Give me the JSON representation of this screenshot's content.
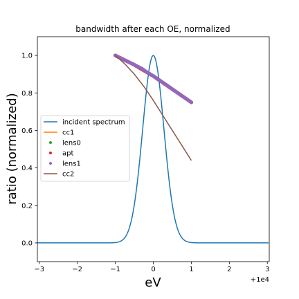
{
  "chart_data": {
    "type": "line",
    "title": "bandwidth after each OE, normalized",
    "xlabel": "eV",
    "ylabel": "ratio (normalized)",
    "x_offset_label": "+1e4",
    "xlim": [
      -3.05,
      3.05
    ],
    "ylim": [
      -0.1,
      1.1
    ],
    "x_ticks": [
      -3,
      -2,
      -1,
      0,
      1,
      2,
      3
    ],
    "x_tick_labels": [
      "−3",
      "−2",
      "−1",
      "0",
      "1",
      "2",
      "3"
    ],
    "y_ticks": [
      0.0,
      0.2,
      0.4,
      0.6,
      0.8,
      1.0
    ],
    "y_tick_labels": [
      "0.0",
      "0.2",
      "0.4",
      "0.6",
      "0.8",
      "1.0"
    ],
    "grid": false,
    "legend_position": "center-left",
    "series": [
      {
        "name": "incident spectrum",
        "kind": "line",
        "color": "#1f77b4",
        "x": [
          -3.0,
          -2.0,
          -1.5,
          -1.0,
          -0.8,
          -0.6,
          -0.5,
          -0.4,
          -0.3,
          -0.2,
          -0.1,
          0.0,
          0.1,
          0.2,
          0.3,
          0.4,
          0.5,
          0.6,
          0.8,
          1.0,
          1.5,
          2.0,
          3.0
        ],
        "y": [
          0.0,
          0.0,
          0.001,
          0.02,
          0.08,
          0.24,
          0.37,
          0.53,
          0.7,
          0.85,
          0.96,
          1.0,
          0.96,
          0.85,
          0.7,
          0.53,
          0.37,
          0.24,
          0.08,
          0.02,
          0.001,
          0.0,
          0.0
        ]
      },
      {
        "name": "cc1",
        "kind": "line",
        "color": "#ff7f0e",
        "x": [
          -1.0,
          -0.5,
          0.0,
          0.5,
          1.0
        ],
        "y": [
          1.0,
          0.95,
          0.89,
          0.82,
          0.75
        ]
      },
      {
        "name": "lens0",
        "kind": "scatter",
        "color": "#2ca02c",
        "x": [
          -1.0,
          -0.5,
          0.0,
          0.5,
          1.0
        ],
        "y": [
          1.0,
          0.95,
          0.89,
          0.82,
          0.75
        ]
      },
      {
        "name": "apt",
        "kind": "scatter",
        "color": "#d62728",
        "x": [
          -1.0,
          -0.5,
          0.0,
          0.5,
          1.0
        ],
        "y": [
          1.0,
          0.95,
          0.89,
          0.82,
          0.75
        ]
      },
      {
        "name": "lens1",
        "kind": "scatter",
        "color": "#9467bd",
        "x": [
          -1.0,
          -0.9,
          -0.8,
          -0.7,
          -0.6,
          -0.5,
          -0.4,
          -0.3,
          -0.2,
          -0.1,
          0.0,
          0.1,
          0.2,
          0.3,
          0.4,
          0.5,
          0.6,
          0.7,
          0.8,
          0.9,
          1.0
        ],
        "y": [
          1.0,
          0.99,
          0.98,
          0.97,
          0.96,
          0.95,
          0.94,
          0.93,
          0.915,
          0.903,
          0.89,
          0.877,
          0.863,
          0.849,
          0.835,
          0.82,
          0.806,
          0.792,
          0.778,
          0.764,
          0.75
        ]
      },
      {
        "name": "cc2",
        "kind": "line",
        "color": "#8c564b",
        "x": [
          -1.0,
          -0.75,
          -0.5,
          -0.25,
          0.0,
          0.25,
          0.5,
          0.75,
          1.0
        ],
        "y": [
          1.0,
          0.955,
          0.9,
          0.835,
          0.76,
          0.68,
          0.6,
          0.52,
          0.44
        ]
      }
    ]
  }
}
